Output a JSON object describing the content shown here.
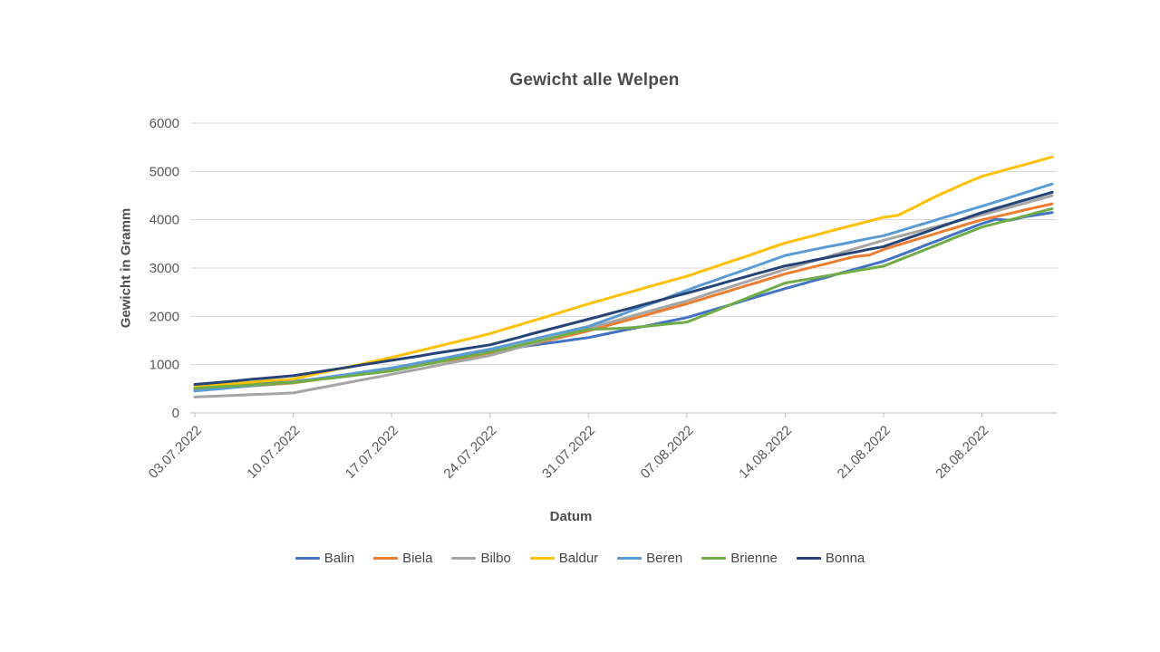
{
  "page": {
    "background_color": "#FFFFFF"
  },
  "chart_data": {
    "type": "line",
    "title": "Gewicht alle Welpen",
    "xlabel": "Datum",
    "ylabel": "Gewicht in Gramm",
    "ylim": [
      0,
      6000
    ],
    "y_ticks": [
      0,
      1000,
      2000,
      3000,
      4000,
      5000,
      6000
    ],
    "grid": true,
    "legend_position": "bottom",
    "x_tick_labels": [
      "03.07.2022",
      "10.07.2022",
      "17.07.2022",
      "24.07.2022",
      "31.07.2022",
      "07.08.2022",
      "14.08.2022",
      "21.08.2022",
      "28.08.2022"
    ],
    "x_tick_interval_days": 7,
    "x": [
      "03.07.2022",
      "04.07.2022",
      "05.07.2022",
      "06.07.2022",
      "07.07.2022",
      "08.07.2022",
      "09.07.2022",
      "10.07.2022",
      "11.07.2022",
      "12.07.2022",
      "13.07.2022",
      "14.07.2022",
      "15.07.2022",
      "16.07.2022",
      "17.07.2022",
      "18.07.2022",
      "19.07.2022",
      "20.07.2022",
      "21.07.2022",
      "22.07.2022",
      "23.07.2022",
      "24.07.2022",
      "25.07.2022",
      "26.07.2022",
      "27.07.2022",
      "28.07.2022",
      "29.07.2022",
      "30.07.2022",
      "31.07.2022",
      "01.08.2022",
      "02.08.2022",
      "03.08.2022",
      "04.08.2022",
      "05.08.2022",
      "06.08.2022",
      "07.08.2022",
      "08.08.2022",
      "09.08.2022",
      "10.08.2022",
      "11.08.2022",
      "12.08.2022",
      "13.08.2022",
      "14.08.2022",
      "15.08.2022",
      "16.08.2022",
      "17.08.2022",
      "18.08.2022",
      "19.08.2022",
      "20.08.2022",
      "21.08.2022",
      "22.08.2022",
      "23.08.2022",
      "24.08.2022",
      "25.08.2022",
      "26.08.2022",
      "27.08.2022",
      "28.08.2022",
      "29.08.2022",
      "30.08.2022",
      "31.08.2022",
      "01.09.2022",
      "02.09.2022"
    ],
    "series": [
      {
        "name": "Balin",
        "color": "#4472C4",
        "values": [
          500,
          520,
          545,
          565,
          585,
          610,
          630,
          650,
          685,
          720,
          755,
          795,
          830,
          865,
          900,
          955,
          1010,
          1065,
          1115,
          1170,
          1225,
          1280,
          1320,
          1360,
          1400,
          1440,
          1480,
          1520,
          1560,
          1620,
          1680,
          1740,
          1795,
          1855,
          1915,
          1975,
          2060,
          2145,
          2230,
          2320,
          2405,
          2490,
          2575,
          2655,
          2735,
          2815,
          2900,
          2980,
          3060,
          3140,
          3250,
          3360,
          3475,
          3585,
          3700,
          3810,
          3920,
          4010,
          3990,
          4060,
          4105,
          4150
        ]
      },
      {
        "name": "Biela",
        "color": "#ED7D31",
        "values": [
          480,
          500,
          520,
          540,
          560,
          580,
          600,
          620,
          660,
          700,
          740,
          780,
          820,
          860,
          900,
          945,
          990,
          1040,
          1085,
          1130,
          1175,
          1220,
          1290,
          1355,
          1425,
          1495,
          1560,
          1630,
          1700,
          1780,
          1860,
          1940,
          2020,
          2100,
          2180,
          2260,
          2350,
          2440,
          2525,
          2615,
          2700,
          2790,
          2880,
          2950,
          3025,
          3095,
          3170,
          3240,
          3270,
          3385,
          3475,
          3565,
          3650,
          3740,
          3825,
          3915,
          4000,
          4065,
          4130,
          4200,
          4265,
          4330
        ]
      },
      {
        "name": "Bilbo",
        "color": "#A5A5A5",
        "values": [
          330,
          342,
          354,
          366,
          378,
          390,
          402,
          415,
          470,
          525,
          580,
          635,
          690,
          745,
          800,
          855,
          910,
          970,
          1025,
          1080,
          1135,
          1190,
          1270,
          1350,
          1430,
          1515,
          1595,
          1675,
          1755,
          1835,
          1915,
          2000,
          2080,
          2160,
          2240,
          2320,
          2415,
          2510,
          2600,
          2695,
          2790,
          2880,
          2975,
          3060,
          3145,
          3230,
          3320,
          3405,
          3490,
          3575,
          3650,
          3725,
          3800,
          3875,
          3950,
          4025,
          4100,
          4180,
          4260,
          4340,
          4420,
          4500
        ]
      },
      {
        "name": "Baldur",
        "color": "#FFC000",
        "values": [
          540,
          565,
          585,
          610,
          635,
          660,
          680,
          700,
          765,
          830,
          895,
          955,
          1020,
          1085,
          1150,
          1220,
          1290,
          1360,
          1430,
          1500,
          1570,
          1640,
          1730,
          1815,
          1905,
          1990,
          2080,
          2170,
          2260,
          2340,
          2425,
          2505,
          2590,
          2670,
          2750,
          2830,
          2930,
          3025,
          3125,
          3220,
          3320,
          3420,
          3520,
          3595,
          3670,
          3750,
          3825,
          3900,
          3975,
          4050,
          4090,
          4230,
          4380,
          4520,
          4650,
          4780,
          4900,
          4980,
          5060,
          5140,
          5220,
          5300
        ]
      },
      {
        "name": "Beren",
        "color": "#5B9BD5",
        "values": [
          455,
          480,
          505,
          535,
          560,
          585,
          615,
          640,
          680,
          720,
          765,
          805,
          850,
          890,
          930,
          985,
          1040,
          1095,
          1150,
          1210,
          1265,
          1320,
          1385,
          1455,
          1520,
          1590,
          1655,
          1725,
          1790,
          1895,
          2000,
          2110,
          2215,
          2320,
          2430,
          2540,
          2645,
          2745,
          2850,
          2950,
          3055,
          3155,
          3260,
          3320,
          3380,
          3440,
          3495,
          3555,
          3615,
          3670,
          3755,
          3845,
          3930,
          4020,
          4105,
          4195,
          4280,
          4370,
          4465,
          4555,
          4650,
          4740
        ]
      },
      {
        "name": "Brienne",
        "color": "#70AD47",
        "values": [
          510,
          530,
          545,
          560,
          580,
          595,
          615,
          630,
          665,
          700,
          730,
          765,
          800,
          835,
          870,
          925,
          980,
          1035,
          1095,
          1150,
          1205,
          1260,
          1325,
          1395,
          1460,
          1530,
          1595,
          1665,
          1730,
          1740,
          1750,
          1765,
          1790,
          1820,
          1850,
          1880,
          1995,
          2110,
          2230,
          2345,
          2460,
          2575,
          2690,
          2740,
          2790,
          2840,
          2890,
          2940,
          2990,
          3040,
          3155,
          3270,
          3385,
          3500,
          3620,
          3735,
          3850,
          3925,
          4000,
          4075,
          4155,
          4230
        ]
      },
      {
        "name": "Bonna",
        "color": "#264478",
        "values": [
          590,
          615,
          640,
          665,
          695,
          720,
          745,
          770,
          815,
          860,
          905,
          950,
          1000,
          1045,
          1090,
          1135,
          1180,
          1230,
          1275,
          1320,
          1365,
          1410,
          1485,
          1560,
          1640,
          1715,
          1790,
          1865,
          1940,
          2015,
          2095,
          2170,
          2250,
          2325,
          2405,
          2480,
          2560,
          2640,
          2725,
          2805,
          2885,
          2965,
          3045,
          3100,
          3160,
          3215,
          3275,
          3330,
          3390,
          3445,
          3545,
          3645,
          3745,
          3850,
          3950,
          4050,
          4150,
          4235,
          4320,
          4405,
          4485,
          4570
        ]
      }
    ]
  },
  "styles": {
    "grid_color": "#D9D9D9",
    "axis_line_color": "#BFBFBF",
    "tick_label_color": "#595959",
    "title_color": "#4D4D4D",
    "axis_title_color": "#4D4D4D",
    "legend_text_color": "#464646"
  }
}
